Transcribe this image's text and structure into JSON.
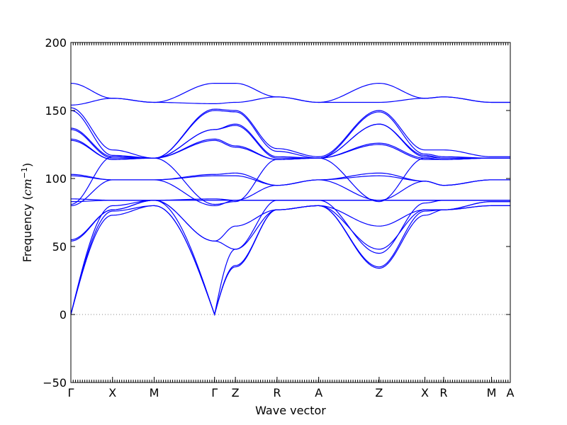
{
  "chart_data": {
    "type": "line",
    "xlabel": "Wave vector",
    "ylabel": "Frequency (",
    "ylabel_unit": "cm",
    "ylabel_exp": "−1",
    "ylabel_close": ")",
    "ylim": [
      -50,
      200
    ],
    "yticks": [
      -50,
      0,
      50,
      100,
      150,
      200
    ],
    "xlim": [
      0,
      10.55
    ],
    "xticks": [
      {
        "label": "Γ",
        "x": 0.0
      },
      {
        "label": "X",
        "x": 1.0
      },
      {
        "label": "M",
        "x": 2.0
      },
      {
        "label": "Γ",
        "x": 3.45
      },
      {
        "label": "Z",
        "x": 3.95
      },
      {
        "label": "R",
        "x": 4.95
      },
      {
        "label": "A",
        "x": 5.95
      },
      {
        "label": "Z",
        "x": 7.4
      },
      {
        "label": "X",
        "x": 8.5
      },
      {
        "label": "R",
        "x": 8.95
      },
      {
        "label": "M",
        "x": 10.1
      },
      {
        "label": "A",
        "x": 10.55
      }
    ],
    "zero_line": {
      "y": 0,
      "style": "dotted",
      "color": "#888888"
    },
    "line_color": "#0000ff",
    "series": [
      {
        "x": [
          0,
          1.0,
          2.0,
          3.45,
          3.95,
          4.95,
          5.95,
          7.4,
          8.5,
          8.95,
          10.1,
          10.55
        ],
        "y": [
          170,
          159,
          156,
          170,
          170,
          160,
          156,
          170,
          159,
          160,
          156,
          156
        ]
      },
      {
        "x": [
          0,
          1.0,
          2.0,
          3.45,
          3.95,
          4.95,
          5.95,
          7.4,
          8.5,
          8.95,
          10.1,
          10.55
        ],
        "y": [
          154,
          159,
          156,
          155,
          156,
          160,
          156,
          156,
          159,
          160,
          156,
          156
        ]
      },
      {
        "x": [
          0,
          1.0,
          2.0,
          3.45,
          3.95,
          4.95,
          5.95,
          7.4,
          8.5,
          8.95,
          10.1,
          10.55
        ],
        "y": [
          152,
          121,
          115,
          151,
          150,
          122,
          116,
          150,
          121,
          121,
          116,
          116
        ]
      },
      {
        "x": [
          0,
          1.0,
          2.0,
          3.45,
          3.95,
          4.95,
          5.95,
          7.4,
          8.5,
          8.95,
          10.1,
          10.55
        ],
        "y": [
          150,
          117,
          115,
          150,
          149,
          120,
          115,
          149,
          118,
          116,
          115,
          115
        ]
      },
      {
        "x": [
          0,
          1.0,
          2.0,
          3.45,
          3.95,
          4.95,
          5.95,
          7.4,
          8.5,
          8.95,
          10.1,
          10.55
        ],
        "y": [
          137,
          116,
          115,
          136,
          140,
          116,
          115,
          140,
          117,
          115,
          115,
          115
        ]
      },
      {
        "x": [
          0,
          1.0,
          2.0,
          3.45,
          3.95,
          4.95,
          5.95,
          7.4,
          8.5,
          8.95,
          10.1,
          10.55
        ],
        "y": [
          136,
          115,
          115,
          136,
          139,
          115,
          115,
          140,
          116,
          115,
          115,
          115
        ]
      },
      {
        "x": [
          0,
          1.0,
          2.0,
          3.45,
          3.95,
          4.95,
          5.95,
          7.4,
          8.5,
          8.95,
          10.1,
          10.55
        ],
        "y": [
          129,
          114,
          115,
          129,
          124,
          114,
          115,
          126,
          115,
          114,
          115,
          115
        ]
      },
      {
        "x": [
          0,
          1.0,
          2.0,
          3.45,
          3.95,
          4.95,
          5.95,
          7.4,
          8.5,
          8.95,
          10.1,
          10.55
        ],
        "y": [
          128,
          114,
          115,
          128,
          123,
          114,
          115,
          125,
          114,
          114,
          115,
          115
        ]
      },
      {
        "x": [
          0,
          1.0,
          2.0,
          3.45,
          3.95,
          4.95,
          5.95,
          7.4,
          8.5,
          8.95,
          10.1,
          10.55
        ],
        "y": [
          103,
          99,
          99,
          103,
          104,
          95,
          99,
          104,
          98,
          95,
          99,
          99
        ]
      },
      {
        "x": [
          0,
          1.0,
          2.0,
          3.45,
          3.95,
          4.95,
          5.95,
          7.4,
          8.5,
          8.95,
          10.1,
          10.55
        ],
        "y": [
          102,
          99,
          99,
          102,
          102,
          95,
          99,
          102,
          98,
          95,
          99,
          99
        ]
      },
      {
        "x": [
          0,
          1.0,
          2.0,
          3.45,
          3.95,
          4.95,
          5.95,
          7.4,
          8.5,
          8.95,
          10.1,
          10.55
        ],
        "y": [
          85,
          84,
          84,
          85,
          84,
          84,
          84,
          84,
          84,
          84,
          84,
          84
        ]
      },
      {
        "x": [
          0,
          1.0,
          2.0,
          3.45,
          3.95,
          4.95,
          5.95,
          7.4,
          8.5,
          8.95,
          10.1,
          10.55
        ],
        "y": [
          83,
          84,
          84,
          84,
          84,
          84,
          84,
          84,
          84,
          84,
          84,
          84
        ]
      },
      {
        "x": [
          0,
          1.0,
          2.0,
          3.45,
          3.95,
          4.95,
          5.95,
          7.4,
          8.5,
          8.95,
          10.1,
          10.55
        ],
        "y": [
          81,
          116,
          115,
          81,
          83,
          114,
          115,
          83,
          115,
          114,
          115,
          115
        ]
      },
      {
        "x": [
          0,
          1.0,
          2.0,
          3.45,
          3.95,
          4.95,
          5.95,
          7.4,
          8.5,
          8.95,
          10.1,
          10.55
        ],
        "y": [
          80,
          99,
          99,
          80,
          84,
          95,
          99,
          84,
          98,
          95,
          99,
          99
        ]
      },
      {
        "x": [
          0,
          1.0,
          2.0,
          3.45,
          3.95,
          4.95,
          5.95,
          7.4,
          8.5,
          8.95,
          10.1,
          10.55
        ],
        "y": [
          55,
          77,
          84,
          54,
          65,
          77,
          80,
          65,
          77,
          77,
          83,
          83
        ]
      },
      {
        "x": [
          0,
          1.0,
          2.0,
          3.45,
          3.95,
          4.95,
          5.95,
          7.4,
          8.5,
          8.95,
          10.1,
          10.55
        ],
        "y": [
          54,
          77,
          84,
          54,
          48,
          77,
          80,
          48,
          77,
          77,
          83,
          83
        ]
      },
      {
        "x": [
          0,
          1.0,
          2.0,
          3.45,
          3.95,
          4.95,
          5.95,
          7.4,
          8.5,
          8.95,
          10.1,
          10.55
        ],
        "y": [
          0,
          73,
          80,
          0,
          36,
          77,
          80,
          34,
          73,
          77,
          80,
          80
        ]
      },
      {
        "x": [
          0,
          1.0,
          2.0,
          3.45,
          3.95,
          4.95,
          5.95,
          7.4,
          8.5,
          8.95,
          10.1,
          10.55
        ],
        "y": [
          0,
          76,
          80,
          0,
          35,
          77,
          80,
          35,
          76,
          77,
          80,
          80
        ]
      },
      {
        "x": [
          0,
          1.0,
          2.0,
          3.45,
          3.95,
          4.95,
          5.95,
          7.4,
          8.5,
          8.95,
          10.1,
          10.55
        ],
        "y": [
          0,
          80,
          84,
          0,
          48,
          84,
          84,
          45,
          82,
          84,
          84,
          84
        ]
      }
    ]
  }
}
